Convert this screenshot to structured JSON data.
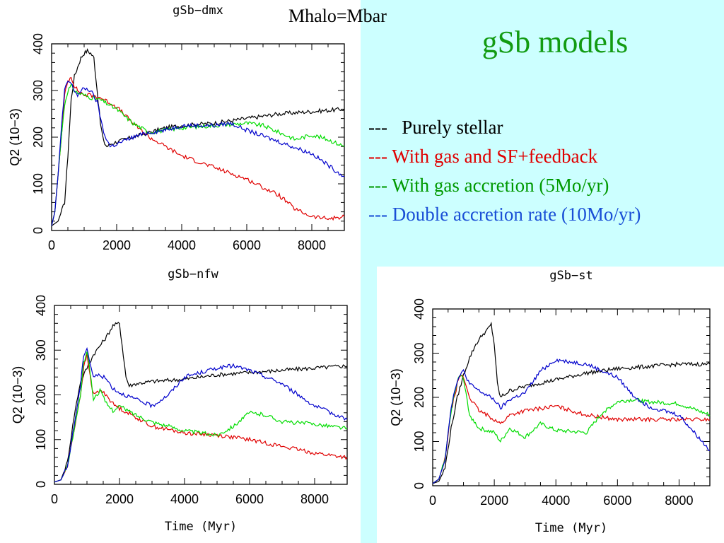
{
  "slide": {
    "title": "gSb models",
    "subtitle": "Mhalo=Mbar"
  },
  "legend": [
    {
      "dash": "---",
      "label": "Purely stellar",
      "color": "#000000"
    },
    {
      "dash": "---",
      "label": "With gas and SF+feedback",
      "color": "#e00000"
    },
    {
      "dash": "---",
      "label": "With gas accretion (5Mo/yr)",
      "color": "#009900"
    },
    {
      "dash": "---",
      "label": "Double accretion rate (10Mo/yr)",
      "color": "#1a4fd6"
    }
  ],
  "colors": {
    "black": "#000000",
    "red": "#e00000",
    "green": "#00dd00",
    "blue": "#0000cc"
  },
  "chart_data": [
    {
      "type": "line",
      "title": "gSb−dmx",
      "ylabel": "Q2 (10−3)",
      "xlabel": "",
      "xlim": [
        0,
        9000
      ],
      "ylim": [
        0,
        400
      ],
      "x_ticks": [
        "0",
        "2000",
        "4000",
        "6000",
        "8000"
      ],
      "y_ticks": [
        "0",
        "100",
        "200",
        "300",
        "400"
      ],
      "series": [
        {
          "color": "black",
          "x": [
            0,
            200,
            400,
            500,
            600,
            700,
            800,
            900,
            1000,
            1100,
            1200,
            1300,
            1400,
            1500,
            1600,
            1700,
            1800,
            2000,
            2500,
            3000,
            3500,
            4000,
            5000,
            6000,
            7000,
            8000,
            9000
          ],
          "y": [
            10,
            20,
            60,
            160,
            280,
            330,
            350,
            370,
            380,
            385,
            380,
            370,
            300,
            230,
            190,
            180,
            185,
            190,
            200,
            210,
            220,
            225,
            230,
            240,
            250,
            255,
            260
          ]
        },
        {
          "color": "red",
          "x": [
            0,
            100,
            200,
            300,
            400,
            500,
            600,
            700,
            800,
            1000,
            1200,
            1500,
            2000,
            2500,
            3000,
            3500,
            4000,
            5000,
            6000,
            7000,
            7500,
            8000,
            8500,
            9000
          ],
          "y": [
            10,
            40,
            120,
            200,
            290,
            320,
            330,
            310,
            300,
            290,
            290,
            285,
            265,
            230,
            200,
            180,
            160,
            135,
            110,
            75,
            45,
            30,
            25,
            30
          ]
        },
        {
          "color": "green",
          "x": [
            0,
            100,
            200,
            300,
            400,
            500,
            600,
            700,
            800,
            1000,
            1200,
            1500,
            2000,
            2500,
            3000,
            4000,
            5000,
            6000,
            6500,
            7000,
            7500,
            8000,
            8500,
            9000
          ],
          "y": [
            10,
            40,
            120,
            200,
            270,
            300,
            310,
            300,
            295,
            290,
            285,
            280,
            260,
            230,
            210,
            220,
            225,
            230,
            225,
            210,
            195,
            205,
            195,
            180
          ]
        },
        {
          "color": "blue",
          "x": [
            0,
            100,
            200,
            300,
            400,
            500,
            600,
            700,
            800,
            1000,
            1200,
            1400,
            1600,
            1800,
            2000,
            2500,
            3000,
            3500,
            4000,
            5000,
            5500,
            6000,
            7000,
            8000,
            8500,
            9000
          ],
          "y": [
            10,
            40,
            120,
            220,
            300,
            320,
            315,
            300,
            290,
            305,
            300,
            275,
            210,
            180,
            185,
            200,
            210,
            215,
            225,
            225,
            230,
            215,
            190,
            165,
            140,
            115
          ]
        }
      ]
    },
    {
      "type": "line",
      "title": "gSb−nfw",
      "ylabel": "Q2 (10−3)",
      "xlabel": "Time (Myr)",
      "xlim": [
        0,
        9000
      ],
      "ylim": [
        0,
        400
      ],
      "x_ticks": [
        "0",
        "2000",
        "4000",
        "6000",
        "8000"
      ],
      "y_ticks": [
        "0",
        "100",
        "200",
        "300",
        "400"
      ],
      "series": [
        {
          "color": "black",
          "x": [
            0,
            200,
            400,
            600,
            800,
            1000,
            1200,
            1400,
            1600,
            1800,
            2000,
            2200,
            2300,
            2500,
            3000,
            4000,
            5000,
            6000,
            7000,
            8000,
            9000
          ],
          "y": [
            5,
            10,
            50,
            150,
            230,
            260,
            290,
            310,
            330,
            355,
            360,
            240,
            220,
            225,
            230,
            235,
            245,
            250,
            255,
            260,
            265
          ]
        },
        {
          "color": "red",
          "x": [
            0,
            200,
            400,
            600,
            800,
            900,
            1000,
            1100,
            1200,
            1400,
            1600,
            1800,
            2000,
            2500,
            3000,
            4000,
            5000,
            6000,
            7000,
            8000,
            9000
          ],
          "y": [
            5,
            10,
            40,
            120,
            200,
            260,
            290,
            240,
            200,
            210,
            200,
            180,
            170,
            150,
            130,
            115,
            110,
            100,
            85,
            70,
            60
          ]
        },
        {
          "color": "green",
          "x": [
            0,
            200,
            400,
            600,
            800,
            900,
            1000,
            1100,
            1200,
            1400,
            1600,
            1800,
            2000,
            2500,
            3000,
            4000,
            5000,
            5500,
            6000,
            6500,
            7000,
            8000,
            9000
          ],
          "y": [
            5,
            10,
            40,
            120,
            200,
            270,
            300,
            250,
            190,
            210,
            180,
            165,
            175,
            155,
            140,
            120,
            110,
            130,
            160,
            155,
            140,
            135,
            125
          ]
        },
        {
          "color": "blue",
          "x": [
            0,
            200,
            400,
            600,
            800,
            900,
            1000,
            1100,
            1200,
            1400,
            1600,
            1800,
            2000,
            2500,
            3000,
            3500,
            4000,
            5000,
            5500,
            6000,
            7000,
            8000,
            9000
          ],
          "y": [
            5,
            10,
            40,
            130,
            220,
            290,
            305,
            270,
            240,
            245,
            235,
            215,
            205,
            190,
            175,
            200,
            240,
            260,
            265,
            255,
            225,
            175,
            145
          ]
        }
      ]
    },
    {
      "type": "line",
      "title": "gSb−st",
      "ylabel": "Q2 (10−3)",
      "xlabel": "Time (Myr)",
      "xlim": [
        0,
        9000
      ],
      "ylim": [
        0,
        400
      ],
      "x_ticks": [
        "0",
        "2000",
        "4000",
        "6000",
        "8000"
      ],
      "y_ticks": [
        "0",
        "100",
        "200",
        "300",
        "400"
      ],
      "series": [
        {
          "color": "black",
          "x": [
            0,
            200,
            400,
            600,
            800,
            1000,
            1200,
            1400,
            1600,
            1800,
            1900,
            2000,
            2100,
            2200,
            2500,
            3000,
            4000,
            5000,
            6000,
            7000,
            8000,
            9000
          ],
          "y": [
            5,
            10,
            40,
            130,
            200,
            250,
            290,
            320,
            340,
            355,
            365,
            320,
            230,
            200,
            215,
            225,
            240,
            255,
            265,
            270,
            275,
            275
          ]
        },
        {
          "color": "red",
          "x": [
            0,
            200,
            400,
            600,
            800,
            900,
            1000,
            1200,
            1500,
            2000,
            2200,
            2500,
            3000,
            3500,
            4000,
            5000,
            6000,
            7000,
            8000,
            9000
          ],
          "y": [
            5,
            15,
            60,
            170,
            230,
            250,
            245,
            200,
            170,
            150,
            140,
            160,
            170,
            175,
            180,
            160,
            150,
            150,
            150,
            150
          ]
        },
        {
          "color": "green",
          "x": [
            0,
            200,
            400,
            600,
            800,
            900,
            1000,
            1200,
            1500,
            2000,
            2200,
            2500,
            3000,
            3500,
            4000,
            5000,
            5500,
            6000,
            6500,
            7000,
            8000,
            9000
          ],
          "y": [
            5,
            15,
            60,
            170,
            240,
            250,
            240,
            160,
            130,
            120,
            100,
            130,
            110,
            140,
            125,
            120,
            165,
            190,
            195,
            190,
            185,
            160
          ]
        },
        {
          "color": "blue",
          "x": [
            0,
            200,
            400,
            600,
            800,
            900,
            1000,
            1200,
            1500,
            2000,
            2200,
            2500,
            3000,
            3500,
            4000,
            5000,
            6000,
            6500,
            7000,
            8000,
            8500,
            9000
          ],
          "y": [
            5,
            15,
            60,
            180,
            240,
            250,
            260,
            230,
            215,
            195,
            175,
            195,
            210,
            260,
            285,
            275,
            245,
            205,
            180,
            160,
            120,
            80
          ]
        }
      ]
    }
  ]
}
